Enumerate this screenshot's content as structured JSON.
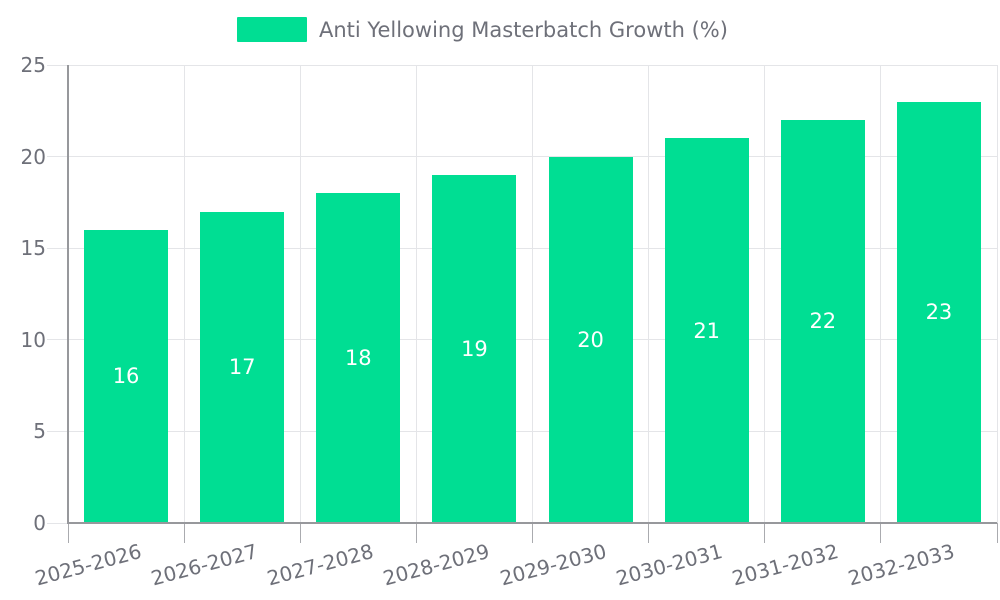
{
  "legend": {
    "label": "Anti Yellowing Masterbatch Growth (%)"
  },
  "chart_data": {
    "type": "bar",
    "title": "",
    "xlabel": "",
    "ylabel": "",
    "series_name": "Anti Yellowing Masterbatch Growth (%)",
    "categories": [
      "2025-2026",
      "2026-2027",
      "2027-2028",
      "2028-2029",
      "2029-2030",
      "2030-2031",
      "2031-2032",
      "2032-2033"
    ],
    "values": [
      16,
      17,
      18,
      19,
      20,
      21,
      22,
      23
    ],
    "value_labels": [
      "16",
      "17",
      "18",
      "19",
      "20",
      "21",
      "22",
      "23"
    ],
    "ylim": [
      0,
      25
    ],
    "yticks": [
      0,
      5,
      10,
      15,
      20,
      25
    ],
    "ytick_labels": [
      "0",
      "5",
      "10",
      "15",
      "20",
      "25"
    ],
    "grid": true,
    "legend_position": "top-center",
    "bar_label_position": "inside-center",
    "x_label_rotation_deg": -15
  },
  "colors": {
    "bar": "#00DE93",
    "bar_label": "#ffffff",
    "axis_line": "#97989c",
    "tick": "#aaabaf",
    "gridline": "#e4e5e8",
    "text": "#6e7079",
    "background": "#ffffff"
  }
}
